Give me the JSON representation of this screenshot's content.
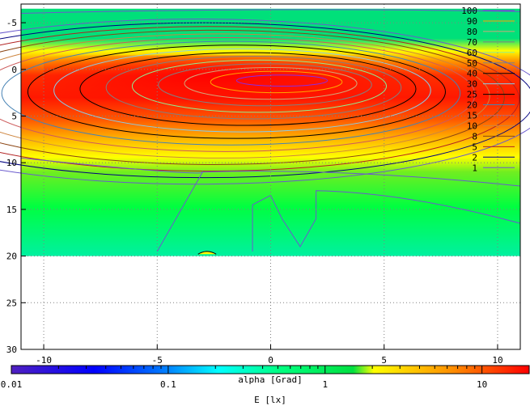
{
  "chart_data": {
    "type": "heatmap",
    "xlabel": "alpha [Grad]",
    "colorbar_label": "E [lx]",
    "xlim": [
      -11,
      11
    ],
    "ylim": [
      -7,
      30
    ],
    "y_inverted": true,
    "data_extent_y": [
      -7,
      20
    ],
    "x_ticks": [
      "-10",
      "-5",
      "0",
      "5",
      "10"
    ],
    "x_tick_values": [
      -10,
      -5,
      0,
      5,
      10
    ],
    "y_ticks": [
      "-5",
      "0",
      "5",
      "10",
      "15",
      "20",
      "25",
      "30"
    ],
    "y_tick_values": [
      -5,
      0,
      5,
      10,
      15,
      20,
      25,
      30
    ],
    "grid": true,
    "contour_levels": [
      "100",
      "90",
      "80",
      "70",
      "60",
      "50",
      "40",
      "30",
      "25",
      "20",
      "15",
      "10",
      "8",
      "5",
      "2",
      "1"
    ],
    "contour_colors": [
      "#8a2be2",
      "#ffa500",
      "#d2a679",
      "#808080",
      "#90ee90",
      "#808080",
      "#000000",
      "#87ceeb",
      "#000000",
      "#4682b4",
      "#cd5c5c",
      "#cd853f",
      "#8b4513",
      "#b22222",
      "#000080",
      "#6a5acd"
    ],
    "legend_position": "top-right",
    "colorbar": {
      "scale": "log",
      "range": [
        0.01,
        20
      ],
      "ticks": [
        "0.01",
        "0.1",
        "1",
        "10"
      ],
      "tick_values": [
        0.01,
        0.1,
        1,
        10
      ]
    }
  }
}
